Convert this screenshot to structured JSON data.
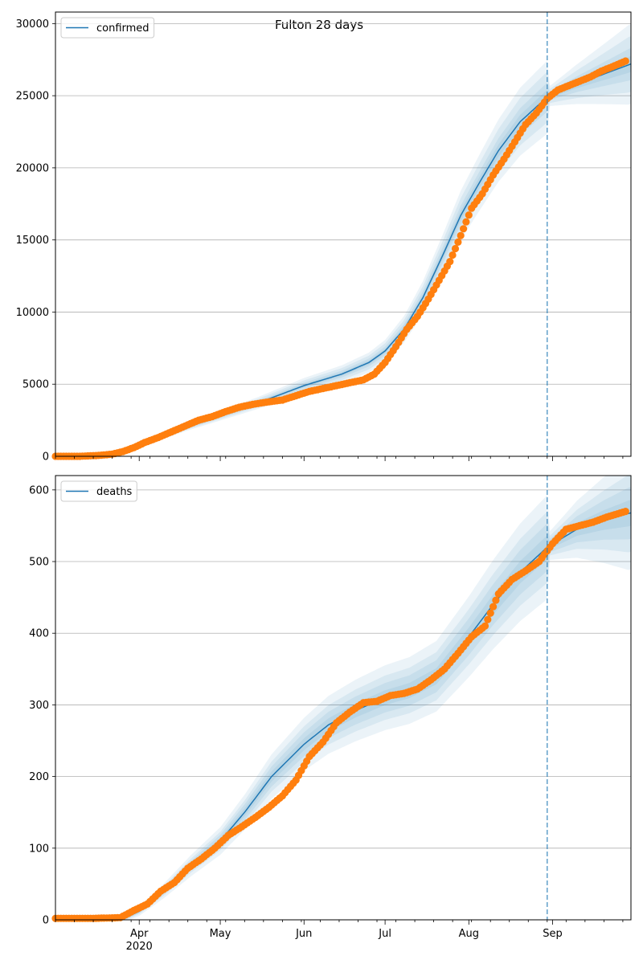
{
  "title": "Fulton 28 days",
  "x_axis": {
    "start": "2020-03-01",
    "end": "2020-09-30",
    "month_ticks": [
      {
        "date": "2020-04-01",
        "label": "Apr"
      },
      {
        "date": "2020-05-01",
        "label": "May"
      },
      {
        "date": "2020-06-01",
        "label": "Jun"
      },
      {
        "date": "2020-07-01",
        "label": "Jul"
      },
      {
        "date": "2020-08-01",
        "label": "Aug"
      },
      {
        "date": "2020-09-01",
        "label": "Sep"
      }
    ],
    "year_label": "2020",
    "year_label_under": "2020-04-01"
  },
  "colors": {
    "model_line": "#1f77b4",
    "band": "#1f77b4",
    "observed": "#ff7f0e",
    "forecast_marker": "#1f77b4",
    "grid": "#b0b0b0"
  },
  "forecast_start": "2020-08-30",
  "chart_data": [
    {
      "type": "line",
      "legend": "confirmed",
      "legend_position": "upper left",
      "ylim": [
        0,
        30800
      ],
      "yticks": [
        0,
        5000,
        10000,
        15000,
        20000,
        25000,
        30000
      ],
      "ytick_labels": [
        "0",
        "5000",
        "10000",
        "15000",
        "20000",
        "25000",
        "30000"
      ],
      "grid": "horizontal",
      "model_x": [
        "2020-03-01",
        "2020-03-10",
        "2020-03-20",
        "2020-03-27",
        "2020-04-01",
        "2020-04-10",
        "2020-04-20",
        "2020-05-01",
        "2020-05-15",
        "2020-06-01",
        "2020-06-15",
        "2020-06-25",
        "2020-07-01",
        "2020-07-08",
        "2020-07-15",
        "2020-07-22",
        "2020-07-29",
        "2020-08-05",
        "2020-08-12",
        "2020-08-20",
        "2020-08-30",
        "2020-09-10",
        "2020-09-20",
        "2020-09-30"
      ],
      "model_y": [
        0,
        20,
        100,
        300,
        700,
        1400,
        2100,
        2800,
        3700,
        4900,
        5700,
        6500,
        7300,
        8800,
        11000,
        13800,
        16700,
        19000,
        21200,
        23200,
        24900,
        25800,
        26500,
        27200
      ],
      "band_half_widths": [
        [
          0.02,
          5
        ],
        [
          0.04,
          10
        ],
        [
          0.07,
          20
        ],
        [
          0.1,
          40
        ]
      ],
      "observed_x": [
        "2020-03-01",
        "2020-03-10",
        "2020-03-17",
        "2020-03-22",
        "2020-03-26",
        "2020-03-30",
        "2020-04-03",
        "2020-04-08",
        "2020-04-13",
        "2020-04-18",
        "2020-04-23",
        "2020-04-28",
        "2020-05-03",
        "2020-05-08",
        "2020-05-13",
        "2020-05-18",
        "2020-05-24",
        "2020-05-29",
        "2020-06-03",
        "2020-06-08",
        "2020-06-13",
        "2020-06-18",
        "2020-06-23",
        "2020-06-27",
        "2020-07-01",
        "2020-07-05",
        "2020-07-09",
        "2020-07-13",
        "2020-07-17",
        "2020-07-21",
        "2020-07-25",
        "2020-07-29",
        "2020-08-02",
        "2020-08-06",
        "2020-08-10",
        "2020-08-14",
        "2020-08-18",
        "2020-08-22",
        "2020-08-26",
        "2020-08-30",
        "2020-09-03",
        "2020-09-07",
        "2020-09-11",
        "2020-09-15",
        "2020-09-19",
        "2020-09-23",
        "2020-09-28"
      ],
      "observed_y": [
        0,
        0,
        60,
        150,
        330,
        600,
        950,
        1300,
        1700,
        2100,
        2500,
        2750,
        3100,
        3400,
        3600,
        3750,
        3900,
        4200,
        4500,
        4700,
        4900,
        5100,
        5300,
        5700,
        6500,
        7600,
        8800,
        9700,
        10900,
        12200,
        13500,
        15300,
        17200,
        18200,
        19500,
        20600,
        21800,
        23000,
        23800,
        24800,
        25400,
        25700,
        26000,
        26300,
        26700,
        27000,
        27400
      ]
    },
    {
      "type": "line",
      "legend": "deaths",
      "legend_position": "upper left",
      "ylim": [
        0,
        620
      ],
      "yticks": [
        0,
        100,
        200,
        300,
        400,
        500,
        600
      ],
      "ytick_labels": [
        "0",
        "100",
        "200",
        "300",
        "400",
        "500",
        "600"
      ],
      "grid": "horizontal",
      "model_x": [
        "2020-03-01",
        "2020-03-20",
        "2020-03-27",
        "2020-04-01",
        "2020-04-10",
        "2020-04-20",
        "2020-05-01",
        "2020-05-10",
        "2020-05-20",
        "2020-06-01",
        "2020-06-10",
        "2020-06-20",
        "2020-07-01",
        "2020-07-10",
        "2020-07-20",
        "2020-08-01",
        "2020-08-10",
        "2020-08-20",
        "2020-08-30",
        "2020-09-10",
        "2020-09-20",
        "2020-09-30"
      ],
      "model_y": [
        0,
        1,
        3,
        12,
        40,
        75,
        110,
        150,
        200,
        245,
        272,
        292,
        310,
        320,
        340,
        395,
        440,
        485,
        520,
        545,
        558,
        568
      ],
      "band_half_widths": [
        [
          0.03,
          1
        ],
        [
          0.06,
          2
        ],
        [
          0.09,
          3
        ],
        [
          0.13,
          5
        ]
      ],
      "observed_x": [
        "2020-03-01",
        "2020-03-15",
        "2020-03-25",
        "2020-03-30",
        "2020-04-04",
        "2020-04-09",
        "2020-04-14",
        "2020-04-19",
        "2020-04-24",
        "2020-04-29",
        "2020-05-04",
        "2020-05-09",
        "2020-05-14",
        "2020-05-19",
        "2020-05-24",
        "2020-05-29",
        "2020-06-03",
        "2020-06-08",
        "2020-06-13",
        "2020-06-18",
        "2020-06-23",
        "2020-06-28",
        "2020-07-03",
        "2020-07-08",
        "2020-07-13",
        "2020-07-18",
        "2020-07-23",
        "2020-07-28",
        "2020-08-02",
        "2020-08-07",
        "2020-08-12",
        "2020-08-17",
        "2020-08-22",
        "2020-08-27",
        "2020-09-01",
        "2020-09-06",
        "2020-09-11",
        "2020-09-16",
        "2020-09-21",
        "2020-09-28"
      ],
      "observed_y": [
        2,
        2,
        3,
        13,
        22,
        40,
        52,
        72,
        85,
        100,
        118,
        130,
        143,
        157,
        173,
        195,
        228,
        248,
        275,
        290,
        303,
        305,
        313,
        316,
        322,
        335,
        350,
        372,
        395,
        410,
        455,
        475,
        487,
        500,
        525,
        545,
        550,
        555,
        562,
        570
      ]
    }
  ]
}
